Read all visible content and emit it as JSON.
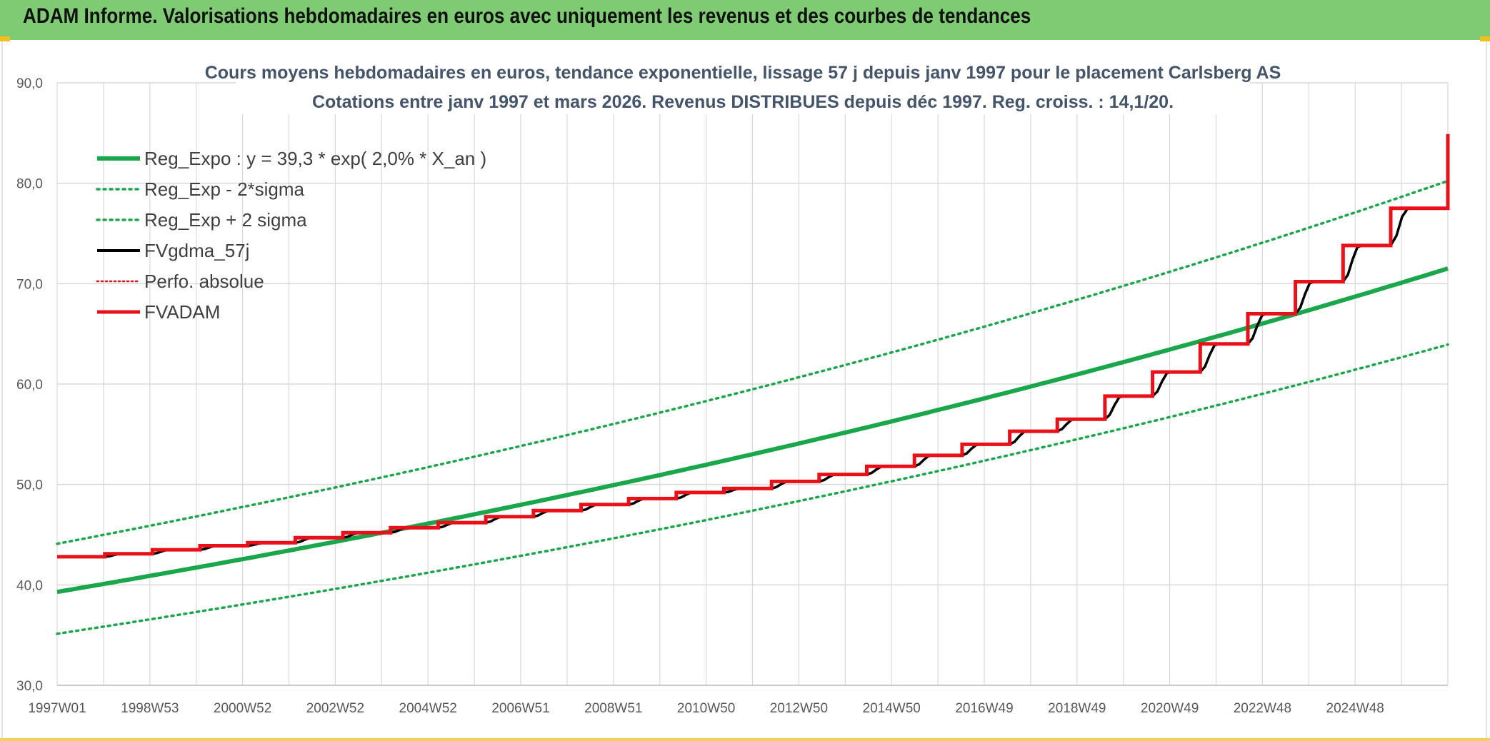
{
  "header": {
    "title": "ADAM Informe. Valorisations hebdomadaires en euros avec uniquement les revenus et des courbes de tendances"
  },
  "colors": {
    "title_bar": "#7ecb74",
    "trend": "#1aa64a",
    "fvgdma": "#000000",
    "fvadam": "#e8111a",
    "perfo": "#e8111a",
    "grid": "#d9d9d9"
  },
  "chart_data": {
    "type": "line",
    "title": "Cours moyens hebdomadaires en euros, tendance exponentielle, lissage 57 j depuis janv 1997 pour le placement Carlsberg AS",
    "subtitle": "Cotations entre janv 1997 et mars 2026. Revenus DISTRIBUES depuis déc 1997. Reg. croiss. : 14,1/20.",
    "xlabel": "",
    "ylabel": "",
    "x_range": [
      1997.0,
      2026.2
    ],
    "ylim": [
      30,
      90
    ],
    "y_ticks": [
      "30,0",
      "40,0",
      "50,0",
      "60,0",
      "70,0",
      "80,0",
      "90,0"
    ],
    "x_tick_labels": [
      "1997W01",
      "1998W53",
      "2000W52",
      "2002W52",
      "2004W52",
      "2006W51",
      "2008W51",
      "2010W50",
      "2012W50",
      "2014W50",
      "2016W49",
      "2018W49",
      "2020W49",
      "2022W48",
      "2024W48"
    ],
    "grid": true,
    "legend_position": "top-left",
    "legend": [
      "Reg_Expo : y = 39,3 * exp( 2,0% *  X_an )",
      "Reg_Exp - 2*sigma",
      "Reg_Exp + 2 sigma",
      "FVgdma_57j",
      "Perfo. absolue",
      "FVADAM"
    ],
    "trend": {
      "a": 39.3,
      "rate": 0.0205,
      "x0": 1997.0
    },
    "bands": {
      "lower_factor": 0.894,
      "upper_factor": 1.122
    },
    "steps": {
      "x": [
        1997.0,
        1998.0,
        1999.0,
        2000.0,
        2001.0,
        2002.0,
        2003.0,
        2004.0,
        2005.0,
        2006.0,
        2007.0,
        2008.0,
        2009.0,
        2010.0,
        2011.0,
        2012.0,
        2013.0,
        2014.0,
        2015.0,
        2016.0,
        2017.0,
        2018.0,
        2019.0,
        2020.0,
        2021.0,
        2022.0,
        2023.0,
        2024.0,
        2025.0,
        2026.2
      ],
      "y": [
        42.8,
        43.1,
        43.5,
        43.9,
        44.2,
        44.7,
        45.2,
        45.7,
        46.2,
        46.8,
        47.4,
        48.0,
        48.6,
        49.2,
        49.6,
        50.3,
        51.0,
        51.8,
        52.9,
        54.0,
        55.3,
        56.5,
        58.8,
        61.2,
        64.0,
        67.0,
        70.2,
        73.8,
        77.5,
        81.0
      ],
      "final_value": 84.9
    }
  }
}
